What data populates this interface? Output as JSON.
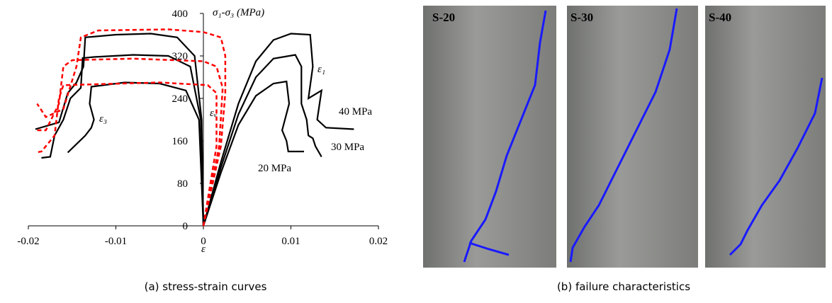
{
  "chart_data": {
    "type": "line",
    "x_label": "ε",
    "y_label": "σ₁-σ₃ (MPa)",
    "xlim": [
      -0.02,
      0.02
    ],
    "xticks": [
      -0.02,
      -0.01,
      0,
      0.01,
      0.02
    ],
    "ylim": [
      0,
      400
    ],
    "yticks": [
      0,
      80,
      160,
      240,
      320,
      400
    ],
    "annotations": [
      "ε₁",
      "ε₃",
      "εᵥ",
      "40 MPa",
      "30 MPa",
      "20 MPa"
    ],
    "series": [
      {
        "color": "#000000",
        "dashed": false,
        "x": [
          0,
          0.002,
          0.004,
          0.006,
          0.008,
          0.01,
          0.0122,
          0.0125,
          0.012,
          0.0135,
          0.013,
          0.014,
          0.0172
        ],
        "values": [
          0,
          120,
          230,
          310,
          350,
          362,
          360,
          300,
          240,
          255,
          200,
          185,
          182
        ]
      },
      {
        "color": "#000000",
        "dashed": false,
        "x": [
          0,
          0.002,
          0.004,
          0.006,
          0.008,
          0.0105,
          0.0112,
          0.0112,
          0.0118,
          0.012,
          0.0125,
          0.0128,
          0.0135
        ],
        "values": [
          0,
          110,
          210,
          280,
          315,
          322,
          300,
          230,
          200,
          170,
          165,
          150,
          130
        ]
      },
      {
        "color": "#000000",
        "dashed": false,
        "x": [
          0,
          0.002,
          0.004,
          0.006,
          0.008,
          0.0095,
          0.0098,
          0.009,
          0.0095,
          0.0097,
          0.0115
        ],
        "values": [
          0,
          100,
          190,
          245,
          268,
          272,
          230,
          180,
          160,
          140,
          140
        ]
      },
      {
        "color": "#000000",
        "dashed": false,
        "x": [
          0,
          -0.0002,
          -0.001,
          -0.003,
          -0.006,
          -0.01,
          -0.0135,
          -0.0137,
          -0.0145,
          -0.0155,
          -0.0165,
          -0.0192
        ],
        "values": [
          0,
          200,
          320,
          355,
          362,
          360,
          355,
          300,
          270,
          250,
          195,
          182
        ]
      },
      {
        "color": "#000000",
        "dashed": false,
        "x": [
          0,
          -0.0003,
          -0.0015,
          -0.004,
          -0.008,
          -0.0125,
          -0.0138,
          -0.014,
          -0.0152,
          -0.016,
          -0.017,
          -0.0175,
          -0.0185
        ],
        "values": [
          0,
          200,
          300,
          320,
          322,
          318,
          316,
          260,
          240,
          200,
          170,
          130,
          128
        ]
      },
      {
        "color": "#000000",
        "dashed": false,
        "x": [
          0,
          -0.0005,
          -0.002,
          -0.005,
          -0.009,
          -0.0128,
          -0.013,
          -0.0125,
          -0.0128,
          -0.0135,
          -0.0155
        ],
        "values": [
          0,
          200,
          255,
          268,
          270,
          262,
          230,
          200,
          185,
          170,
          138
        ]
      },
      {
        "color": "#ff0000",
        "dashed": true,
        "x": [
          0,
          0.002,
          0.0025,
          0.0025,
          0.002,
          0,
          -0.004,
          -0.012,
          -0.014,
          -0.0145,
          -0.016,
          -0.018,
          -0.019
        ],
        "values": [
          0,
          150,
          250,
          320,
          355,
          365,
          370,
          368,
          355,
          300,
          220,
          205,
          230
        ]
      },
      {
        "color": "#ff0000",
        "dashed": true,
        "x": [
          0,
          0.0018,
          0.0022,
          0.0015,
          0,
          -0.008,
          -0.015,
          -0.016,
          -0.0165,
          -0.018,
          -0.0192
        ],
        "values": [
          0,
          150,
          260,
          300,
          310,
          315,
          312,
          300,
          230,
          180,
          180
        ]
      },
      {
        "color": "#ff0000",
        "dashed": true,
        "x": [
          0,
          0.0015,
          0.0015,
          0.0005,
          -0.005,
          -0.016,
          -0.0165,
          -0.017,
          -0.0185,
          -0.0192
        ],
        "values": [
          0,
          150,
          250,
          265,
          270,
          265,
          240,
          170,
          140,
          138
        ]
      }
    ]
  },
  "photos": {
    "labels": [
      "S-20",
      "S-30",
      "S-40"
    ]
  },
  "captions": [
    "(a) stress-strain curves",
    "(b) failure characteristics"
  ]
}
